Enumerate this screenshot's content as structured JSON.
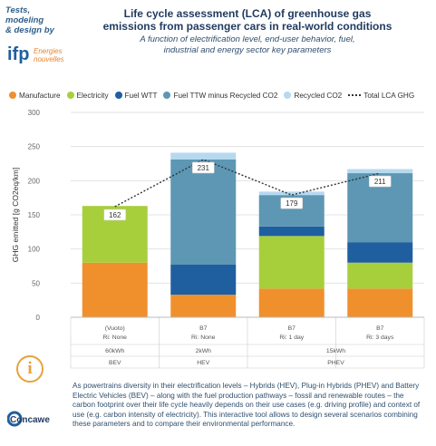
{
  "header": {
    "tagline": [
      "Tests, modeling",
      "& design by"
    ],
    "ifp_text": [
      "ifp",
      "Energies",
      "nouvelles"
    ],
    "title": [
      "Life cycle assessment (LCA) of greenhouse gas",
      "emissions from passenger cars in real-world conditions"
    ],
    "subtitle": [
      "A function of electrification level, end-user behavior, fuel,",
      "industrial and energy sector key parameters"
    ]
  },
  "footer": {
    "info_symbol": "i",
    "description": "As powertrains diversity in their electrification levels – Hybrids (HEV), Plug-in Hybrids (PHEV) and Battery Electric Vehicles (BEV) – along with the fuel production pathways – fossil and renewable routes – the carbon footprint over their life cycle heavily depends on their use cases (e.g. driving profile) and context of use (e.g. carbon intensity of electricity). This interactive tool allows to design several scenarios combining these parameters and to compare their environmental performance.",
    "concawe_text": "Concawe"
  },
  "chart_data": {
    "type": "bar",
    "stacked": true,
    "ylabel": "GHG emitted [g CO2eq/km]",
    "ylim": [
      0,
      300
    ],
    "yticks": [
      0,
      50,
      100,
      150,
      200,
      250,
      300
    ],
    "grid": true,
    "legend_position": "top",
    "categories": [
      "BEV",
      "HEV",
      "PHEV 15kWh Ri: 1 day",
      "PHEV 15kWh Ri: 3 days"
    ],
    "category_rows": {
      "fuel": [
        "(Vuoto)",
        "B7",
        "B7",
        "B7"
      ],
      "recharge": [
        "Ri: None",
        "Ri: None",
        "Ri: 1 day",
        "Ri: 3 days"
      ],
      "battery": [
        "60kWh",
        "2kWh",
        "15kWh"
      ],
      "powertrain": [
        "BEV",
        "HEV",
        "PHEV"
      ]
    },
    "series": [
      {
        "name": "Manufacture",
        "color": "#f0902d",
        "values": [
          80,
          33,
          42,
          42
        ]
      },
      {
        "name": "Electricity",
        "color": "#a7cf3c",
        "values": [
          83,
          0,
          77,
          38
        ]
      },
      {
        "name": "Fuel WTT",
        "color": "#1f5fa0",
        "values": [
          0,
          44,
          14,
          30
        ]
      },
      {
        "name": "Fuel TTW minus Recycled CO2",
        "color": "#5d97b4",
        "values": [
          0,
          154,
          46,
          101
        ]
      },
      {
        "name": "Recycled CO2",
        "color": "#b6d9ef",
        "values": [
          0,
          10,
          5,
          6
        ]
      }
    ],
    "total_series": {
      "name": "Total LCA GHG",
      "values": [
        162,
        231,
        179,
        211
      ]
    }
  }
}
